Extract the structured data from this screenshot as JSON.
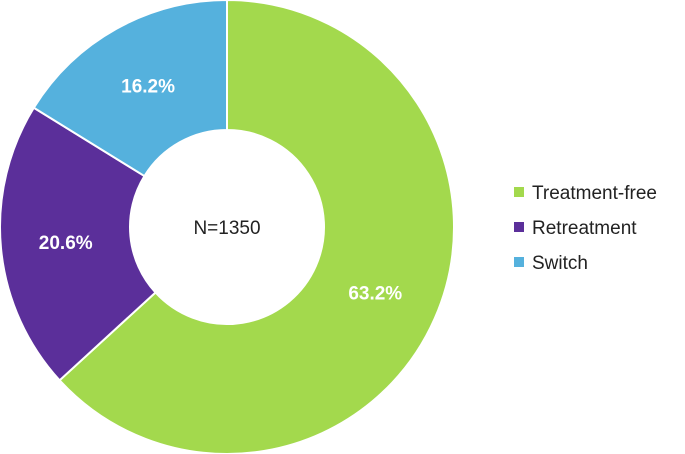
{
  "chart_data": {
    "type": "pie",
    "variant": "donut",
    "center_text": "N=1350",
    "slices": [
      {
        "name": "Treatment-free",
        "value": 63.2,
        "label": "63.2%",
        "color": "#a3d94d"
      },
      {
        "name": "Retreatment",
        "value": 20.6,
        "label": "20.6%",
        "color": "#5b2f9a"
      },
      {
        "name": "Switch",
        "value": 16.2,
        "label": "16.2%",
        "color": "#55b1dd"
      }
    ],
    "legend_position": "right"
  }
}
